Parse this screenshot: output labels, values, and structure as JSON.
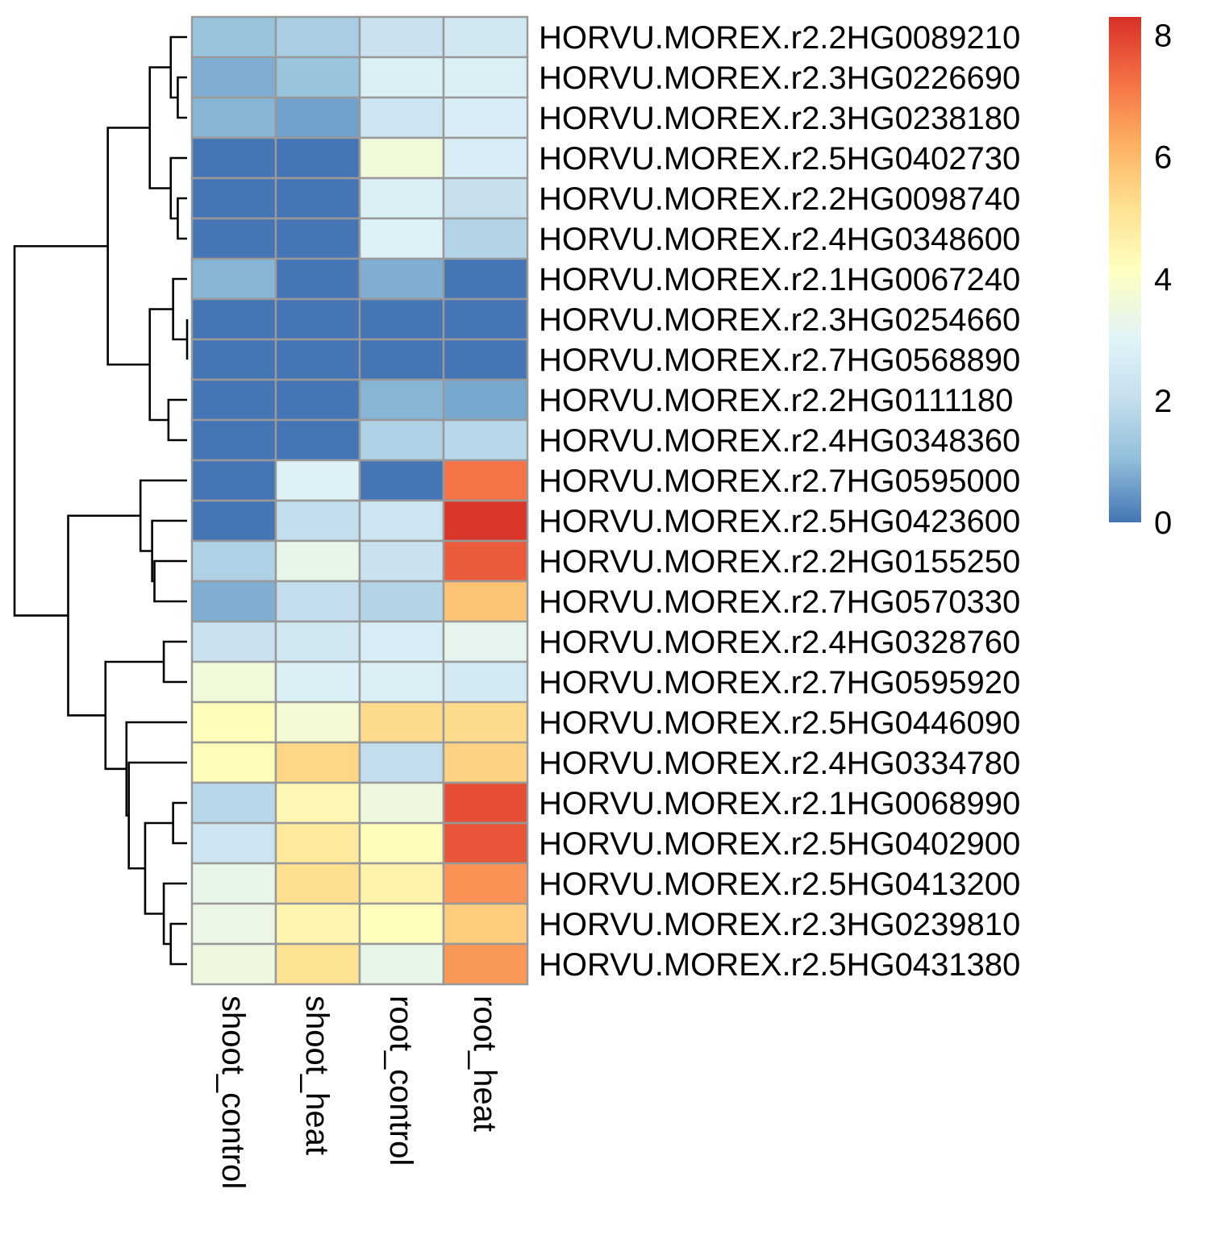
{
  "chart_data": {
    "type": "heatmap",
    "title": "",
    "columns": [
      "shoot_control",
      "shoot_heat",
      "root_control",
      "root_heat"
    ],
    "rows": [
      "HORVU.MOREX.r2.2HG0089210",
      "HORVU.MOREX.r2.3HG0226690",
      "HORVU.MOREX.r2.3HG0238180",
      "HORVU.MOREX.r2.5HG0402730",
      "HORVU.MOREX.r2.2HG0098740",
      "HORVU.MOREX.r2.4HG0348600",
      "HORVU.MOREX.r2.1HG0067240",
      "HORVU.MOREX.r2.3HG0254660",
      "HORVU.MOREX.r2.7HG0568890",
      "HORVU.MOREX.r2.2HG0111180",
      "HORVU.MOREX.r2.4HG0348360",
      "HORVU.MOREX.r2.7HG0595000",
      "HORVU.MOREX.r2.5HG0423600",
      "HORVU.MOREX.r2.2HG0155250",
      "HORVU.MOREX.r2.7HG0570330",
      "HORVU.MOREX.r2.4HG0328760",
      "HORVU.MOREX.r2.7HG0595920",
      "HORVU.MOREX.r2.5HG0446090",
      "HORVU.MOREX.r2.4HG0334780",
      "HORVU.MOREX.r2.1HG0068990",
      "HORVU.MOREX.r2.5HG0402900",
      "HORVU.MOREX.r2.5HG0413200",
      "HORVU.MOREX.r2.3HG0239810",
      "HORVU.MOREX.r2.5HG0431380"
    ],
    "values": [
      [
        1.2,
        1.5,
        2.2,
        2.4
      ],
      [
        0.8,
        1.2,
        2.8,
        2.8
      ],
      [
        0.9,
        0.6,
        2.3,
        2.7
      ],
      [
        0.0,
        0.0,
        3.6,
        2.7
      ],
      [
        0.0,
        0.0,
        2.8,
        2.1
      ],
      [
        0.0,
        0.0,
        2.9,
        1.7
      ],
      [
        0.9,
        0.0,
        0.8,
        0.0
      ],
      [
        0.0,
        0.0,
        0.0,
        0.0
      ],
      [
        0.0,
        0.0,
        0.0,
        0.0
      ],
      [
        0.0,
        0.0,
        0.9,
        0.7
      ],
      [
        0.0,
        0.0,
        1.6,
        1.8
      ],
      [
        0.0,
        2.9,
        0.0,
        7.2
      ],
      [
        0.0,
        2.0,
        2.3,
        8.2
      ],
      [
        1.6,
        3.3,
        2.2,
        7.6
      ],
      [
        0.8,
        2.0,
        1.7,
        5.8
      ],
      [
        2.2,
        2.4,
        2.7,
        3.2
      ],
      [
        3.6,
        2.8,
        2.8,
        2.5
      ],
      [
        4.3,
        3.7,
        5.3,
        5.3
      ],
      [
        4.3,
        5.4,
        2.0,
        5.5
      ],
      [
        1.8,
        4.4,
        3.5,
        7.8
      ],
      [
        2.3,
        4.9,
        4.3,
        7.7
      ],
      [
        3.3,
        5.2,
        4.6,
        6.7
      ],
      [
        3.4,
        4.5,
        4.2,
        5.6
      ],
      [
        3.5,
        5.1,
        3.3,
        6.6
      ]
    ],
    "color_scale": {
      "min": 0,
      "max": 8.3,
      "stops": [
        {
          "value": 0.0,
          "color": "#4575B4"
        },
        {
          "value": 1.04,
          "color": "#91BFDB"
        },
        {
          "value": 2.08,
          "color": "#C7E0EE"
        },
        {
          "value": 3.0,
          "color": "#E0F3F8"
        },
        {
          "value": 4.15,
          "color": "#FFFFBF"
        },
        {
          "value": 5.2,
          "color": "#FEE090"
        },
        {
          "value": 6.25,
          "color": "#FDAE61"
        },
        {
          "value": 7.3,
          "color": "#F46D43"
        },
        {
          "value": 8.3,
          "color": "#D73027"
        }
      ]
    },
    "legend": {
      "ticks": [
        0,
        2,
        4,
        6,
        8
      ],
      "tick_labels": [
        "0",
        "2",
        "4",
        "6",
        "8"
      ],
      "placement": "top-right"
    },
    "cell_border_color": "#999999",
    "row_dendrogram": {
      "merges": [
        {
          "a": 1,
          "b": 2,
          "height": 0.4
        },
        {
          "a": 0,
          "b": "n0",
          "height": 0.7
        },
        {
          "a": 4,
          "b": 5,
          "height": 0.4
        },
        {
          "a": 3,
          "b": "n2",
          "height": 0.7
        },
        {
          "a": "n1",
          "b": "n3",
          "height": 1.6
        },
        {
          "a": 7,
          "b": 8,
          "height": 0.0
        },
        {
          "a": 6,
          "b": "n5",
          "height": 0.6
        },
        {
          "a": 9,
          "b": 10,
          "height": 0.8
        },
        {
          "a": "n6",
          "b": "n7",
          "height": 1.6
        },
        {
          "a": "n4",
          "b": "n8",
          "height": 3.4
        },
        {
          "a": 13,
          "b": 14,
          "height": 1.4
        },
        {
          "a": 12,
          "b": "n10",
          "height": 1.5
        },
        {
          "a": 11,
          "b": "n11",
          "height": 2.0
        },
        {
          "a": 15,
          "b": 16,
          "height": 1.0
        },
        {
          "a": 22,
          "b": 23,
          "height": 0.7
        },
        {
          "a": 19,
          "b": 20,
          "height": 0.6
        },
        {
          "a": 21,
          "b": "n14",
          "height": 1.0
        },
        {
          "a": "n15",
          "b": "n16",
          "height": 1.8
        },
        {
          "a": 18,
          "b": "n17",
          "height": 2.5
        },
        {
          "a": 17,
          "b": "n18",
          "height": 2.6
        },
        {
          "a": "n13",
          "b": "n19",
          "height": 3.5
        },
        {
          "a": "n12",
          "b": "n20",
          "height": 5.1
        },
        {
          "a": "n9",
          "b": "n21",
          "height": 7.4
        }
      ]
    }
  }
}
